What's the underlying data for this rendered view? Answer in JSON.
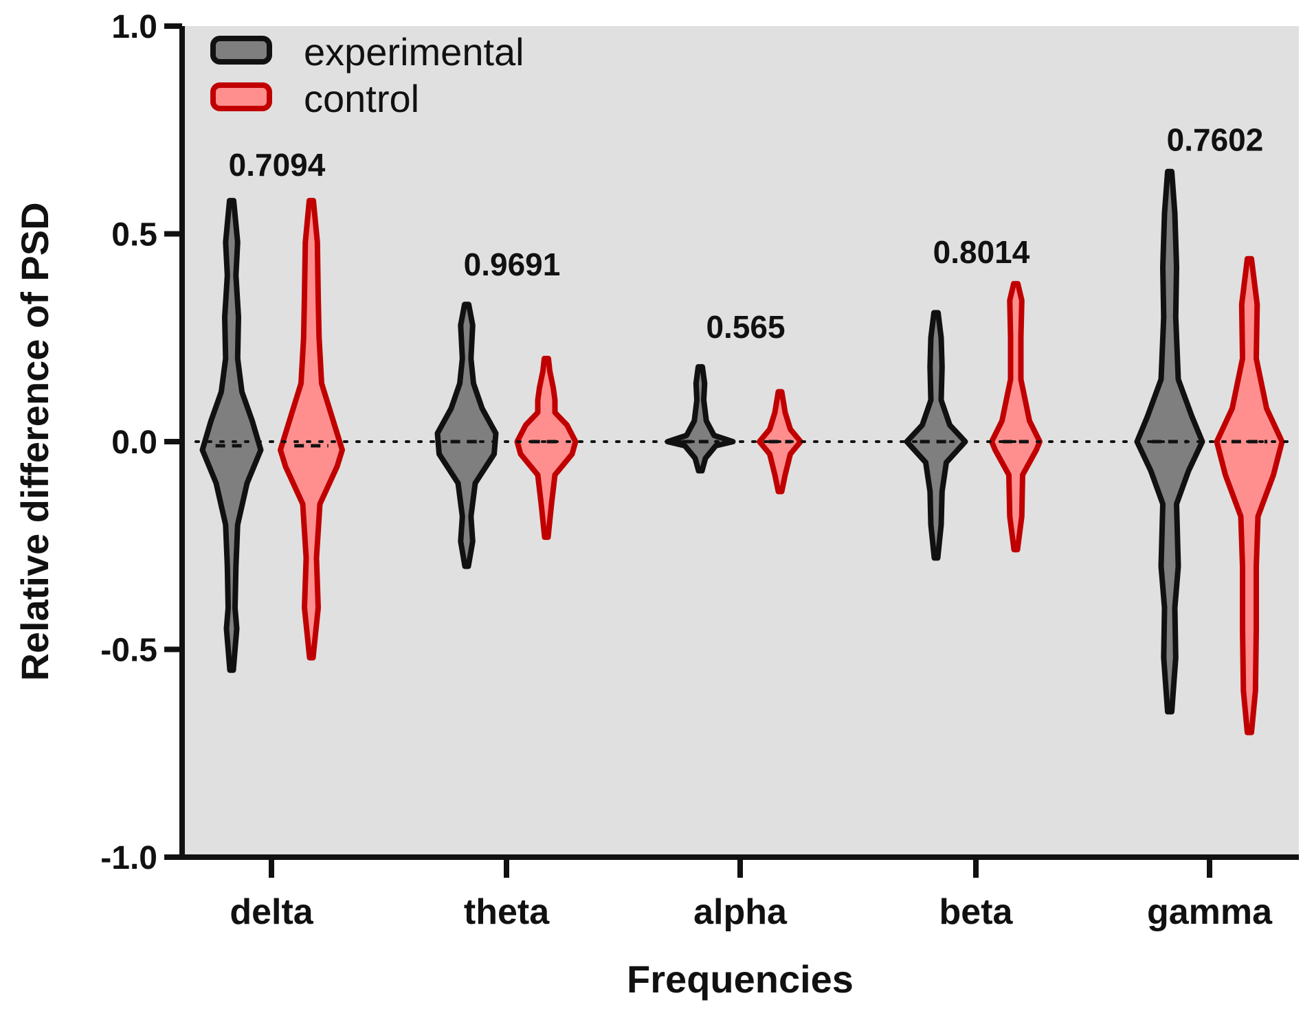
{
  "chart_data": {
    "type": "violin",
    "title": "",
    "xlabel": "Frequencies",
    "ylabel": "Relative difference of PSD",
    "ylim": [
      -1.0,
      1.0
    ],
    "yticks": [
      "1.0",
      "0.5",
      "0.0",
      "-0.5",
      "-1.0"
    ],
    "ytick_values": [
      1.0,
      0.5,
      0.0,
      -0.5,
      -1.0
    ],
    "categories": [
      "delta",
      "theta",
      "alpha",
      "beta",
      "gamma"
    ],
    "reference_line": 0.0,
    "legend": {
      "placement": "top-left",
      "entries": [
        "experimental",
        "control"
      ]
    },
    "p_values": [
      "0.7094",
      "0.9691",
      "0.565",
      "0.8014",
      "0.7602"
    ],
    "p_value_heights": [
      0.64,
      0.4,
      0.25,
      0.43,
      0.7
    ],
    "colors": {
      "background": "#e0e0e0",
      "experimental_fill": "#7f7f7f",
      "experimental_stroke": "#111111",
      "control_fill": "#ff8f8f",
      "control_stroke": "#c00000",
      "axis": "#111111"
    },
    "series": [
      {
        "name": "experimental",
        "violins": [
          {
            "category": "delta",
            "min": -0.55,
            "max": 0.58,
            "median": -0.01,
            "profile": [
              [
                -0.55,
                0.01
              ],
              [
                -0.45,
                0.03
              ],
              [
                -0.4,
                0.02
              ],
              [
                -0.3,
                0.025
              ],
              [
                -0.2,
                0.035
              ],
              [
                -0.1,
                0.09
              ],
              [
                -0.02,
                0.17
              ],
              [
                0.05,
                0.12
              ],
              [
                0.12,
                0.06
              ],
              [
                0.2,
                0.035
              ],
              [
                0.3,
                0.04
              ],
              [
                0.4,
                0.025
              ],
              [
                0.48,
                0.035
              ],
              [
                0.58,
                0.012
              ]
            ]
          },
          {
            "category": "theta",
            "min": -0.3,
            "max": 0.33,
            "median": 0.0,
            "profile": [
              [
                -0.3,
                0.01
              ],
              [
                -0.24,
                0.035
              ],
              [
                -0.18,
                0.025
              ],
              [
                -0.1,
                0.05
              ],
              [
                -0.03,
                0.16
              ],
              [
                0.02,
                0.17
              ],
              [
                0.08,
                0.09
              ],
              [
                0.14,
                0.04
              ],
              [
                0.2,
                0.025
              ],
              [
                0.28,
                0.035
              ],
              [
                0.33,
                0.012
              ]
            ]
          },
          {
            "category": "alpha",
            "min": -0.07,
            "max": 0.18,
            "median": 0.0,
            "profile": [
              [
                -0.07,
                0.01
              ],
              [
                -0.04,
                0.03
              ],
              [
                -0.01,
                0.09
              ],
              [
                0.0,
                0.19
              ],
              [
                0.015,
                0.08
              ],
              [
                0.05,
                0.035
              ],
              [
                0.1,
                0.02
              ],
              [
                0.14,
                0.025
              ],
              [
                0.18,
                0.012
              ]
            ]
          },
          {
            "category": "beta",
            "min": -0.28,
            "max": 0.31,
            "median": 0.0,
            "profile": [
              [
                -0.28,
                0.01
              ],
              [
                -0.2,
                0.03
              ],
              [
                -0.12,
                0.035
              ],
              [
                -0.05,
                0.06
              ],
              [
                0.0,
                0.17
              ],
              [
                0.04,
                0.08
              ],
              [
                0.1,
                0.03
              ],
              [
                0.18,
                0.035
              ],
              [
                0.25,
                0.03
              ],
              [
                0.31,
                0.012
              ]
            ]
          },
          {
            "category": "gamma",
            "min": -0.65,
            "max": 0.65,
            "median": 0.0,
            "profile": [
              [
                -0.65,
                0.012
              ],
              [
                -0.52,
                0.035
              ],
              [
                -0.4,
                0.03
              ],
              [
                -0.3,
                0.05
              ],
              [
                -0.15,
                0.04
              ],
              [
                -0.07,
                0.11
              ],
              [
                0.0,
                0.19
              ],
              [
                0.06,
                0.13
              ],
              [
                0.15,
                0.05
              ],
              [
                0.3,
                0.035
              ],
              [
                0.42,
                0.04
              ],
              [
                0.55,
                0.03
              ],
              [
                0.65,
                0.012
              ]
            ]
          }
        ]
      },
      {
        "name": "control",
        "violins": [
          {
            "category": "delta",
            "min": -0.52,
            "max": 0.58,
            "median": -0.01,
            "profile": [
              [
                -0.52,
                0.01
              ],
              [
                -0.4,
                0.04
              ],
              [
                -0.28,
                0.03
              ],
              [
                -0.15,
                0.05
              ],
              [
                -0.06,
                0.15
              ],
              [
                -0.02,
                0.18
              ],
              [
                0.06,
                0.12
              ],
              [
                0.14,
                0.06
              ],
              [
                0.25,
                0.045
              ],
              [
                0.35,
                0.04
              ],
              [
                0.48,
                0.035
              ],
              [
                0.58,
                0.012
              ]
            ]
          },
          {
            "category": "theta",
            "min": -0.23,
            "max": 0.2,
            "median": 0.0,
            "profile": [
              [
                -0.23,
                0.01
              ],
              [
                -0.15,
                0.03
              ],
              [
                -0.08,
                0.05
              ],
              [
                -0.03,
                0.15
              ],
              [
                0.0,
                0.17
              ],
              [
                0.04,
                0.12
              ],
              [
                0.07,
                0.05
              ],
              [
                0.1,
                0.05
              ],
              [
                0.13,
                0.04
              ],
              [
                0.17,
                0.02
              ],
              [
                0.2,
                0.012
              ]
            ]
          },
          {
            "category": "alpha",
            "min": -0.12,
            "max": 0.12,
            "median": 0.0,
            "profile": [
              [
                -0.12,
                0.01
              ],
              [
                -0.08,
                0.03
              ],
              [
                -0.03,
                0.06
              ],
              [
                0.0,
                0.12
              ],
              [
                0.03,
                0.06
              ],
              [
                0.07,
                0.03
              ],
              [
                0.12,
                0.01
              ]
            ]
          },
          {
            "category": "beta",
            "min": -0.26,
            "max": 0.38,
            "median": 0.0,
            "profile": [
              [
                -0.26,
                0.01
              ],
              [
                -0.18,
                0.035
              ],
              [
                -0.08,
                0.04
              ],
              [
                -0.02,
                0.12
              ],
              [
                0.0,
                0.14
              ],
              [
                0.05,
                0.08
              ],
              [
                0.09,
                0.06
              ],
              [
                0.15,
                0.03
              ],
              [
                0.25,
                0.03
              ],
              [
                0.34,
                0.035
              ],
              [
                0.38,
                0.012
              ]
            ]
          },
          {
            "category": "gamma",
            "min": -0.7,
            "max": 0.44,
            "median": 0.0,
            "profile": [
              [
                -0.7,
                0.012
              ],
              [
                -0.6,
                0.035
              ],
              [
                -0.45,
                0.04
              ],
              [
                -0.3,
                0.04
              ],
              [
                -0.18,
                0.05
              ],
              [
                -0.08,
                0.14
              ],
              [
                0.0,
                0.19
              ],
              [
                0.08,
                0.1
              ],
              [
                0.2,
                0.04
              ],
              [
                0.33,
                0.045
              ],
              [
                0.44,
                0.012
              ]
            ]
          }
        ]
      }
    ]
  }
}
